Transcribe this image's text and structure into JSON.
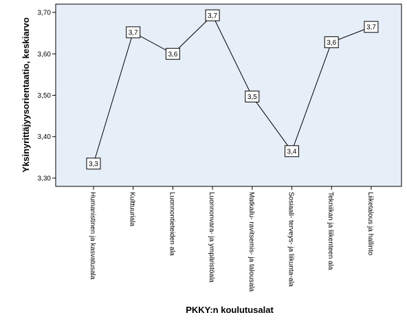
{
  "chart_data": {
    "type": "line",
    "xlabel": "PKKY:n koulutusalat",
    "ylabel": "Yksinyrittäjyysorientaatio, keskiarvo",
    "ylim": [
      3.28,
      3.72
    ],
    "yticks": [
      {
        "value": 3.3,
        "label": "3,30"
      },
      {
        "value": 3.4,
        "label": "3,40"
      },
      {
        "value": 3.5,
        "label": "3,50"
      },
      {
        "value": 3.6,
        "label": "3,60"
      },
      {
        "value": 3.7,
        "label": "3,70"
      }
    ],
    "grid": false,
    "legend": "none",
    "colors": {
      "plot_background": "#e6eef8",
      "line": "#000000"
    },
    "categories": [
      "Humanistinen ja kasvatusala",
      "Kulttuuriala",
      "Luonnontieteiden ala",
      "Luonnonvara- ja ympäristöala",
      "Matkailu- ravitsemis- ja talousala",
      "Sosiaali- terveys- ja liikunta-ala",
      "Tekniikan ja liikenteen ala",
      "Liiketalous ja hallinto"
    ],
    "values": [
      3.335,
      3.652,
      3.6,
      3.693,
      3.497,
      3.365,
      3.628,
      3.665
    ],
    "data_labels": [
      "3,3",
      "3,7",
      "3,6",
      "3,7",
      "3,5",
      "3,4",
      "3,6",
      "3,7"
    ]
  }
}
